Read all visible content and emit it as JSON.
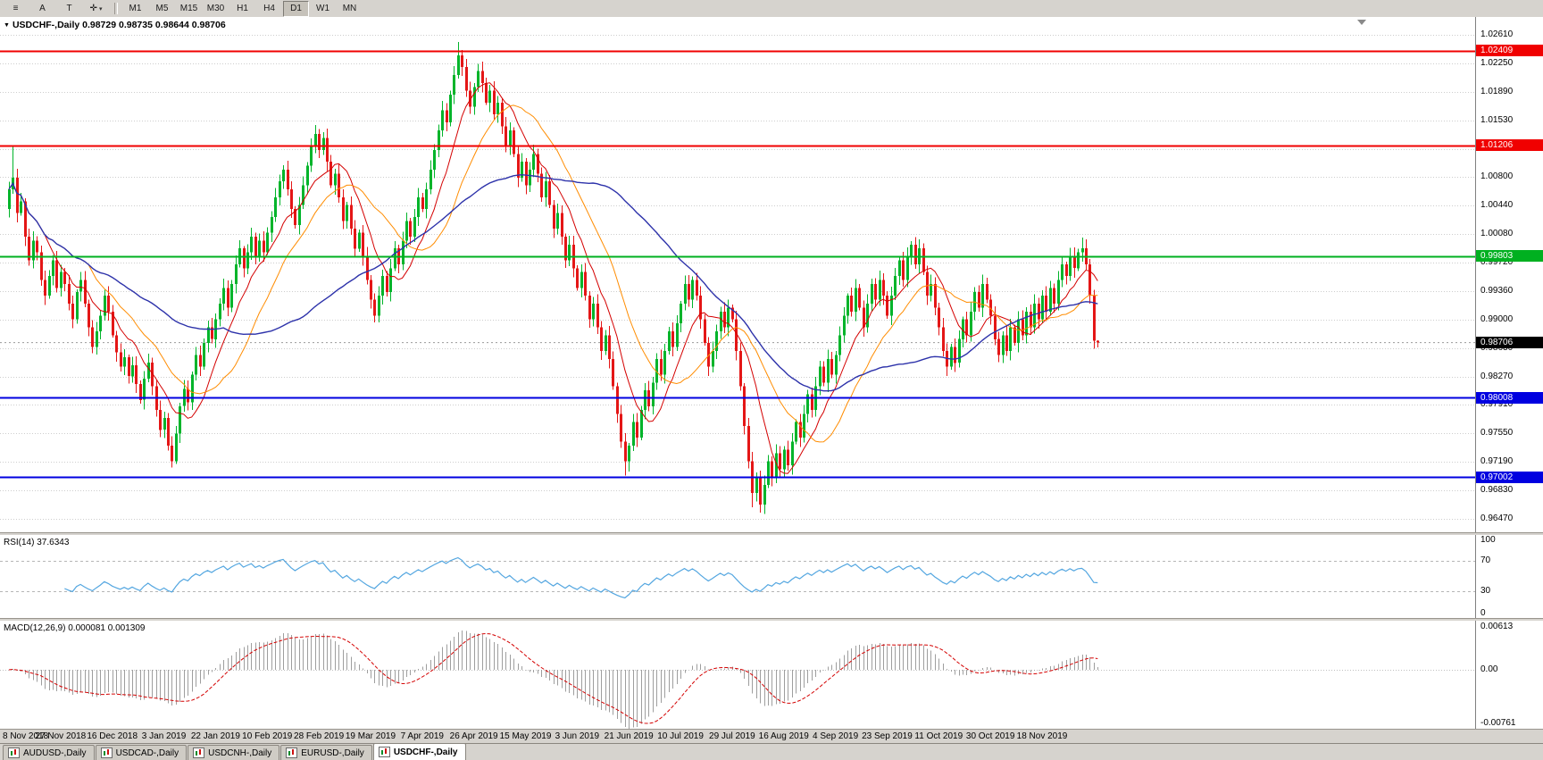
{
  "toolbar": {
    "icons": [
      {
        "name": "chart-menu-icon",
        "glyph": "≡"
      },
      {
        "name": "annotation-a-button",
        "glyph": "A"
      },
      {
        "name": "text-tool-button",
        "glyph": "T"
      },
      {
        "name": "crosshair-tool-button",
        "glyph": "✛",
        "dropdown": "▾"
      }
    ],
    "timeframes": [
      "M1",
      "M5",
      "M15",
      "M30",
      "H1",
      "H4",
      "D1",
      "W1",
      "MN"
    ],
    "active_timeframe": "D1"
  },
  "chart_header": {
    "title_line": "USDCHF-,Daily  0.98729 0.98735 0.98644 0.98706"
  },
  "chart_data": {
    "type": "candlestick",
    "symbol": "USDCHF",
    "timeframe": "Daily",
    "quote": {
      "open": "0.98729",
      "high": "0.98735",
      "low": "0.98644",
      "close": "0.98706"
    },
    "price_axis": [
      "1.02610",
      "1.02250",
      "1.01890",
      "1.01530",
      "1.01170",
      "1.00800",
      "1.00440",
      "1.00080",
      "0.99720",
      "0.99360",
      "0.99000",
      "0.98630",
      "0.98270",
      "0.97910",
      "0.97550",
      "0.97190",
      "0.96830",
      "0.96470"
    ],
    "price_top": 1.0261,
    "price_bottom": 0.9647,
    "dates": [
      "8 Nov 2018",
      "27 Nov 2018",
      "16 Dec 2018",
      "3 Jan 2019",
      "22 Jan 2019",
      "10 Feb 2019",
      "28 Feb 2019",
      "19 Mar 2019",
      "7 Apr 2019",
      "26 Apr 2019",
      "15 May 2019",
      "3 Jun 2019",
      "21 Jun 2019",
      "10 Jul 2019",
      "29 Jul 2019",
      "16 Aug 2019",
      "4 Sep 2019",
      "23 Sep 2019",
      "11 Oct 2019",
      "30 Oct 2019",
      "18 Nov 2019"
    ],
    "date_step": 13,
    "first_open": 1.004,
    "closes": [
      1.0065,
      1.008,
      1.0035,
      1.005,
      1.0005,
      0.9975,
      1.0,
      0.9985,
      0.995,
      0.993,
      0.9955,
      0.9975,
      0.994,
      0.996,
      0.9945,
      0.992,
      0.99,
      0.9935,
      0.995,
      0.992,
      0.989,
      0.9865,
      0.9885,
      0.9905,
      0.993,
      0.991,
      0.988,
      0.9858,
      0.984,
      0.9852,
      0.9828,
      0.9842,
      0.9818,
      0.9798,
      0.9825,
      0.9845,
      0.9815,
      0.9785,
      0.976,
      0.9775,
      0.974,
      0.972,
      0.9755,
      0.979,
      0.9812,
      0.9795,
      0.983,
      0.9855,
      0.984,
      0.987,
      0.989,
      0.9875,
      0.99,
      0.992,
      0.994,
      0.9915,
      0.9945,
      0.997,
      0.999,
      0.9965,
      0.9985,
      1.0005,
      0.998,
      1.0,
      0.9985,
      1.001,
      1.003,
      1.0055,
      1.0075,
      1.009,
      1.0065,
      1.004,
      1.002,
      1.0045,
      1.007,
      1.0095,
      1.012,
      1.0135,
      1.0115,
      1.013,
      1.01,
      1.007,
      1.0085,
      1.0055,
      1.0025,
      1.0045,
      1.0015,
      0.999,
      1.001,
      0.998,
      0.995,
      0.9925,
      0.9905,
      0.993,
      0.9955,
      0.9935,
      0.9965,
      0.999,
      0.997,
      1.0,
      1.0025,
      1.0005,
      1.003,
      1.0055,
      1.004,
      1.0065,
      1.009,
      1.0115,
      1.014,
      1.0165,
      1.015,
      1.0185,
      1.021,
      1.0235,
      1.022,
      1.019,
      1.017,
      1.0195,
      1.0215,
      1.02,
      1.0175,
      1.019,
      1.016,
      1.0175,
      1.0145,
      1.012,
      1.014,
      1.011,
      1.008,
      1.01,
      1.007,
      1.009,
      1.011,
      1.0085,
      1.0055,
      1.0075,
      1.0045,
      1.0015,
      1.0035,
      1.0005,
      0.9975,
      0.9995,
      0.9965,
      0.994,
      0.996,
      0.993,
      0.99,
      0.992,
      0.989,
      0.986,
      0.988,
      0.985,
      0.9815,
      0.978,
      0.9745,
      0.972,
      0.974,
      0.977,
      0.975,
      0.9785,
      0.981,
      0.979,
      0.982,
      0.985,
      0.983,
      0.986,
      0.9885,
      0.9865,
      0.9895,
      0.992,
      0.9945,
      0.9925,
      0.995,
      0.993,
      0.99,
      0.987,
      0.984,
      0.986,
      0.9885,
      0.991,
      0.989,
      0.9915,
      0.99,
      0.986,
      0.9815,
      0.9765,
      0.972,
      0.968,
      0.97,
      0.9665,
      0.969,
      0.972,
      0.97,
      0.973,
      0.971,
      0.9735,
      0.9715,
      0.9745,
      0.977,
      0.975,
      0.978,
      0.9805,
      0.9785,
      0.9815,
      0.984,
      0.982,
      0.985,
      0.983,
      0.9855,
      0.988,
      0.9905,
      0.993,
      0.991,
      0.994,
      0.9915,
      0.989,
      0.992,
      0.9945,
      0.9925,
      0.995,
      0.993,
      0.9905,
      0.993,
      0.9955,
      0.9975,
      0.995,
      0.998,
      0.9995,
      0.997,
      0.999,
      0.996,
      0.993,
      0.9945,
      0.9915,
      0.989,
      0.986,
      0.984,
      0.9865,
      0.9845,
      0.9875,
      0.99,
      0.988,
      0.991,
      0.9935,
      0.9915,
      0.9945,
      0.9925,
      0.9905,
      0.9875,
      0.9855,
      0.988,
      0.986,
      0.989,
      0.987,
      0.99,
      0.988,
      0.991,
      0.989,
      0.992,
      0.99,
      0.993,
      0.991,
      0.994,
      0.992,
      0.995,
      0.997,
      0.9955,
      0.998,
      0.9965,
      0.9985,
      0.999,
      0.997,
      0.993,
      0.98729,
      0.98706
    ],
    "spikes": {
      "1": {
        "h": 1.0121
      },
      "41": {
        "l": 0.9712
      },
      "113": {
        "h": 1.0252
      },
      "114": {
        "h": 1.0242
      },
      "155": {
        "l": 0.9702
      },
      "156": {
        "l": 0.9707
      },
      "187": {
        "l": 0.9662
      },
      "189": {
        "l": 0.9655
      },
      "270": {
        "h": 1.0004
      },
      "274": {
        "h": 0.98735,
        "l": 0.98644
      }
    },
    "moving_averages": [
      {
        "period": 10,
        "color": "#d40000",
        "width": 1
      },
      {
        "period": 21,
        "color": "#ff8c00",
        "width": 1
      },
      {
        "period": 55,
        "color": "#2d32aa",
        "width": 1.4
      }
    ],
    "levels": [
      {
        "price": 1.02409,
        "label": "1.02409",
        "color": "#f00000"
      },
      {
        "price": 1.01206,
        "label": "1.01206",
        "color": "#f00000"
      },
      {
        "price": 0.99803,
        "label": "0.99803",
        "color": "#00b020"
      },
      {
        "price": 0.98008,
        "label": "0.98008",
        "color": "#0000e0"
      },
      {
        "price": 0.97002,
        "label": "0.97002",
        "color": "#0000e0"
      }
    ],
    "current_price": {
      "value": 0.98706,
      "label": "0.98706",
      "tag_color": "#000000"
    }
  },
  "rsi": {
    "name": "RSI(14)",
    "value": "37.6343",
    "period": 14,
    "axis": [
      "100",
      "70",
      "30",
      "0"
    ],
    "axis_values": [
      100,
      70,
      30,
      0
    ],
    "guides": [
      70,
      30
    ],
    "color": "#53a6e0"
  },
  "macd": {
    "name": "MACD(12,26,9)",
    "values": "0.000081 0.001309",
    "fast": 12,
    "slow": 26,
    "signal": 9,
    "axis": [
      "0.00613",
      "0.00",
      "-0.00761"
    ],
    "axis_values": [
      0.00613,
      0,
      -0.00761
    ],
    "hist_color": "#9e9e9e",
    "signal_color": "#d40000"
  },
  "tabs": {
    "items": [
      "AUDUSD-,Daily",
      "USDCAD-,Daily",
      "USDCNH-,Daily",
      "EURUSD-,Daily",
      "USDCHF-,Daily"
    ],
    "active": "USDCHF-,Daily"
  },
  "colors": {
    "up": "#00b42a",
    "down": "#e41616",
    "grid": "#cdcdcd",
    "current_price_line": "#999999",
    "window_bg": "#d6d3ce"
  }
}
